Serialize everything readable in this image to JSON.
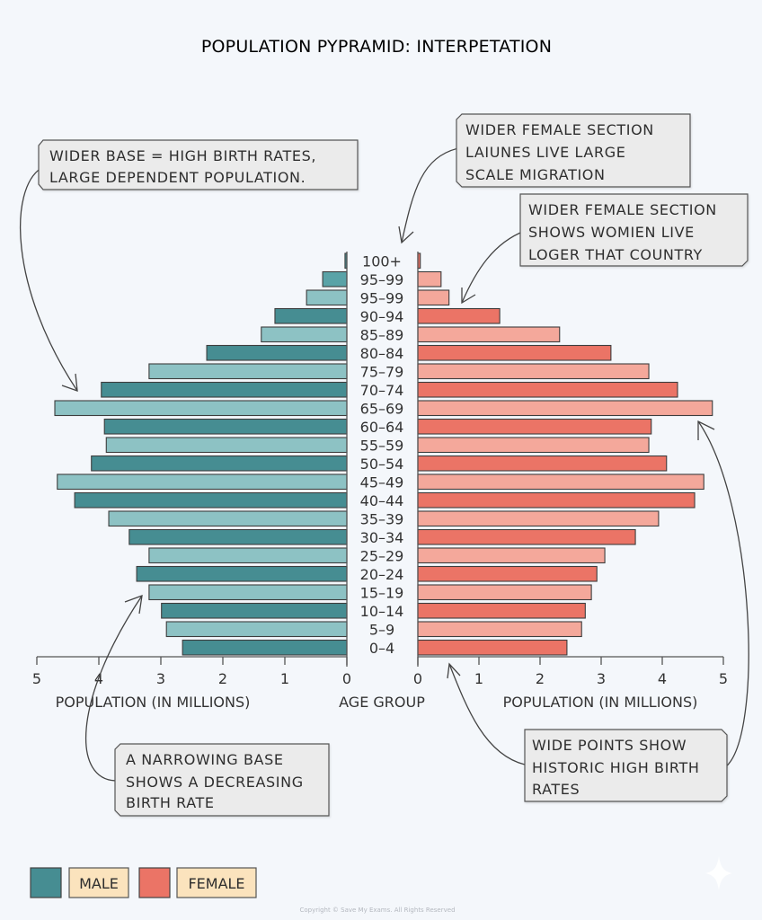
{
  "chart_data": {
    "type": "bar",
    "subtype": "population-pyramid",
    "title": "POPULATION PYPRAMID: INTERPETATION",
    "categories": [
      "100+",
      "95–99",
      "95–99",
      "90–94",
      "85–89",
      "80–84",
      "75–79",
      "70–74",
      "65–69",
      "60–64",
      "55–59",
      "50–54",
      "45–49",
      "40–44",
      "35–39",
      "30–34",
      "25–29",
      "20–24",
      "15–19",
      "10–14",
      "5–9",
      "0–4"
    ],
    "series": [
      {
        "name": "MALE",
        "side": "left",
        "values": [
          0.03,
          0.39,
          0.65,
          1.16,
          1.38,
          2.26,
          3.19,
          3.96,
          4.71,
          3.91,
          3.88,
          4.12,
          4.67,
          4.39,
          3.84,
          3.51,
          3.19,
          3.39,
          3.19,
          2.99,
          2.91,
          2.65
        ]
      },
      {
        "name": "FEMALE",
        "side": "right",
        "values": [
          0.04,
          0.38,
          0.51,
          1.34,
          2.32,
          3.16,
          3.78,
          4.25,
          4.82,
          3.82,
          3.78,
          4.07,
          4.68,
          4.53,
          3.94,
          3.56,
          3.06,
          2.93,
          2.84,
          2.74,
          2.68,
          2.44
        ]
      }
    ],
    "xlim": [
      0,
      5
    ],
    "x_ticks_left": [
      "5",
      "4",
      "3",
      "2",
      "1",
      "0"
    ],
    "x_ticks_right": [
      "0",
      "1",
      "2",
      "3",
      "4",
      "5"
    ],
    "xlabel_left": "POPULATION (IN MILLIONS)",
    "xlabel_center": "AGE GROUP",
    "xlabel_right": "POPULATION (IN MILLIONS)",
    "grid": false,
    "legend": {
      "placement": "bottom-left",
      "entries": [
        {
          "label": "MALE",
          "color": "#468d92"
        },
        {
          "label": "FEMALE",
          "color": "#eb7466"
        }
      ]
    },
    "colors": {
      "male_dark": "#468d92",
      "male_light": "#8dc2c4",
      "female_dark": "#eb7466",
      "female_light": "#f4a89b",
      "legend_label_bg": "#fbe3bd",
      "callout_bg": "#ebebeb"
    },
    "annotations": [
      {
        "id": "wider-base",
        "lines": [
          "WIDER BASE =  HIGH BIRTH RATES,",
          "LARGE DEPENDENT POPULATION."
        ],
        "points_to": "65–69 male"
      },
      {
        "id": "migration",
        "lines": [
          "WIDER FEMALE SECTION",
          "LAIUNES LIVE LARGE",
          "SCALE MIGRATION"
        ],
        "points_to": "100+"
      },
      {
        "id": "women-live-longer",
        "lines": [
          "WIDER FEMALE SECTION",
          "SHOWS WOMIEN LIVE",
          "LOGER THAT COUNTRY"
        ],
        "points_to": "95–99 female"
      },
      {
        "id": "narrowing-base",
        "lines": [
          "A NARROWING BASE",
          "SHOWS A DECREASING",
          "BIRTH RATE"
        ],
        "points_to": "15–19 male"
      },
      {
        "id": "wide-points",
        "lines": [
          "WIDE POINTS SHOW",
          "HISTORIC HIGH BIRTH",
          "RATES"
        ],
        "points_to": "65–69 female and 0–4"
      }
    ],
    "footer": "Copyright © Save My Exams. All Rights Reserved"
  }
}
